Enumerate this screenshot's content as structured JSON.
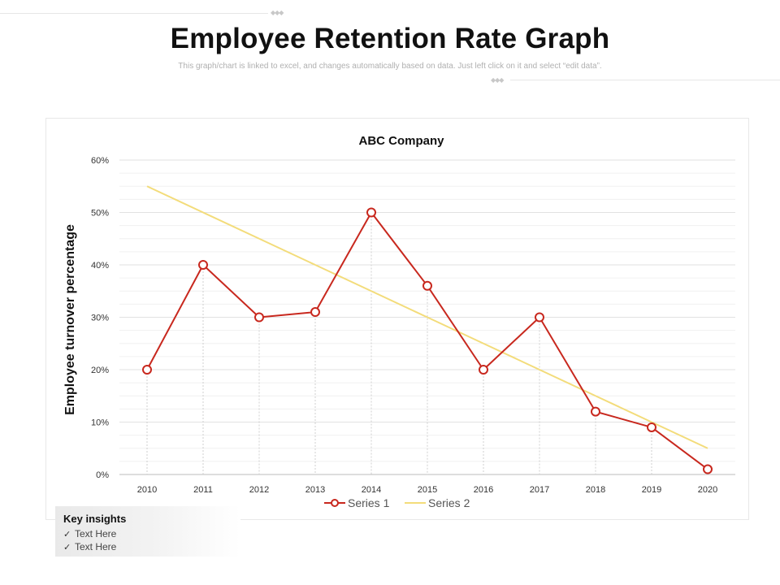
{
  "header": {
    "title": "Employee Retention Rate Graph",
    "subtitle": "This graph/chart is linked to excel, and changes automatically based on data. Just left click on it and select “edit data”."
  },
  "chart_data": {
    "type": "line",
    "title": "ABC Company",
    "xlabel": "",
    "ylabel": "Employee turnover percentage",
    "categories": [
      "2010",
      "2011",
      "2012",
      "2013",
      "2014",
      "2015",
      "2016",
      "2017",
      "2018",
      "2019",
      "2020"
    ],
    "series": [
      {
        "name": "Series 1",
        "color": "#c8281e",
        "values": [
          20,
          40,
          30,
          31,
          50,
          36,
          20,
          30,
          12,
          9,
          1
        ]
      },
      {
        "name": "Series 2",
        "color": "#f3dc7a",
        "values": [
          55,
          50,
          45,
          40,
          35,
          30,
          25,
          20,
          15,
          10,
          5
        ]
      }
    ],
    "ylim": [
      0,
      60
    ],
    "yticks": [
      0,
      10,
      20,
      30,
      40,
      50,
      60
    ],
    "ytick_labels": [
      "0%",
      "10%",
      "20%",
      "30%",
      "40%",
      "50%",
      "60%"
    ],
    "grid": true,
    "legend": "bottom"
  },
  "insights": {
    "title": "Key insights",
    "items": [
      "Text Here",
      "Text Here"
    ]
  }
}
